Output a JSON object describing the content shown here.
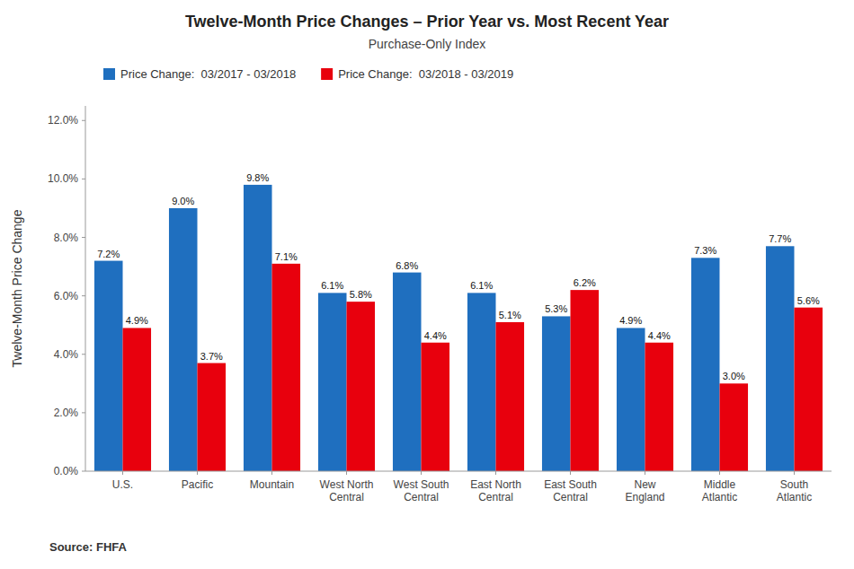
{
  "chart_data": {
    "type": "bar",
    "title": "Twelve-Month Price Changes – Prior Year vs. Most Recent Year",
    "subtitle": "Purchase-Only Index",
    "ylabel": "Twelve-Month Price Change",
    "source": "Source: FHFA",
    "categories": [
      "U.S.",
      "Pacific",
      "Mountain",
      "West North\nCentral",
      "West South\nCentral",
      "East North\nCentral",
      "East South\nCentral",
      "New\nEngland",
      "Middle\nAtlantic",
      "South\nAtlantic"
    ],
    "series": [
      {
        "name": "Price Change:  03/2017 - 03/2018",
        "color": "#1F6FBF",
        "values": [
          7.2,
          9.0,
          9.8,
          6.1,
          6.8,
          6.1,
          5.3,
          4.9,
          7.3,
          7.7
        ],
        "value_labels": [
          "7.2%",
          "9.0%",
          "9.8%",
          "6.1%",
          "6.8%",
          "6.1%",
          "5.3%",
          "4.9%",
          "7.3%",
          "7.7%"
        ]
      },
      {
        "name": "Price Change:  03/2018 - 03/2019",
        "color": "#E8000D",
        "values": [
          4.9,
          3.7,
          7.1,
          5.8,
          4.4,
          5.1,
          6.2,
          4.4,
          3.0,
          5.6
        ],
        "value_labels": [
          "4.9%",
          "3.7%",
          "7.1%",
          "5.8%",
          "4.4%",
          "5.1%",
          "6.2%",
          "4.4%",
          "3.0%",
          "5.6%"
        ]
      }
    ],
    "ylim": [
      0,
      12.5
    ],
    "yticks": [
      {
        "value": 0.0,
        "label": "0.0%"
      },
      {
        "value": 2.0,
        "label": "2.0%"
      },
      {
        "value": 4.0,
        "label": "4.0%"
      },
      {
        "value": 6.0,
        "label": "6.0%"
      },
      {
        "value": 8.0,
        "label": "8.0%"
      },
      {
        "value": 10.0,
        "label": "10.0%"
      },
      {
        "value": 12.0,
        "label": "12.0%"
      }
    ],
    "data_labels": true,
    "grid": false,
    "legend": "upper left"
  }
}
